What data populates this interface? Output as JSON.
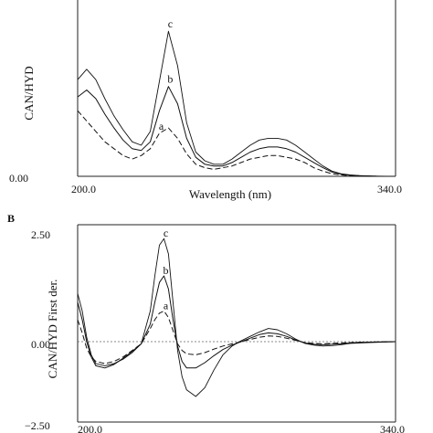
{
  "chart_data": [
    {
      "panel": "A",
      "type": "line",
      "title": "",
      "xlabel": "Wavelength (nm)",
      "ylabel": "CAN/HYD",
      "xlim": [
        200,
        340
      ],
      "ylim": [
        0,
        1.0
      ],
      "x_ticks": [
        "200.0",
        "340.0"
      ],
      "y_ticks": [
        "0.00"
      ],
      "grid": false,
      "legend": "none",
      "series": [
        {
          "name": "a",
          "x": [
            200,
            204,
            208,
            212,
            216,
            220,
            224,
            228,
            232,
            236,
            240,
            244,
            248,
            252,
            256,
            260,
            264,
            268,
            272,
            276,
            280,
            284,
            288,
            292,
            296,
            300,
            304,
            308,
            312,
            316,
            320,
            324,
            328,
            332,
            336,
            340
          ],
          "y": [
            0.38,
            0.32,
            0.26,
            0.2,
            0.16,
            0.12,
            0.1,
            0.12,
            0.16,
            0.25,
            0.28,
            0.22,
            0.13,
            0.07,
            0.05,
            0.04,
            0.05,
            0.06,
            0.08,
            0.1,
            0.11,
            0.12,
            0.12,
            0.11,
            0.1,
            0.08,
            0.05,
            0.03,
            0.015,
            0.008,
            0.004,
            0.002,
            0.001,
            0.0,
            0.0,
            0.0
          ]
        },
        {
          "name": "b",
          "x": [
            200,
            204,
            208,
            212,
            216,
            220,
            224,
            228,
            232,
            236,
            240,
            244,
            248,
            252,
            256,
            260,
            264,
            268,
            272,
            276,
            280,
            284,
            288,
            292,
            296,
            300,
            304,
            308,
            312,
            316,
            320,
            324,
            328,
            332,
            336,
            340
          ],
          "y": [
            0.46,
            0.5,
            0.45,
            0.36,
            0.28,
            0.21,
            0.16,
            0.15,
            0.2,
            0.38,
            0.52,
            0.42,
            0.22,
            0.11,
            0.07,
            0.06,
            0.06,
            0.08,
            0.11,
            0.14,
            0.16,
            0.17,
            0.17,
            0.16,
            0.14,
            0.11,
            0.08,
            0.05,
            0.025,
            0.012,
            0.006,
            0.003,
            0.001,
            0.0,
            0.0,
            0.0
          ]
        },
        {
          "name": "c",
          "x": [
            200,
            204,
            208,
            212,
            216,
            220,
            224,
            228,
            232,
            236,
            240,
            244,
            248,
            252,
            256,
            260,
            264,
            268,
            272,
            276,
            280,
            284,
            288,
            292,
            296,
            300,
            304,
            308,
            312,
            316,
            320,
            324,
            328,
            332,
            336,
            340
          ],
          "y": [
            0.56,
            0.62,
            0.56,
            0.45,
            0.35,
            0.27,
            0.2,
            0.18,
            0.26,
            0.55,
            0.84,
            0.64,
            0.31,
            0.14,
            0.09,
            0.07,
            0.07,
            0.1,
            0.14,
            0.18,
            0.21,
            0.22,
            0.22,
            0.21,
            0.18,
            0.14,
            0.1,
            0.06,
            0.03,
            0.015,
            0.008,
            0.004,
            0.002,
            0.001,
            0.0,
            0.0
          ]
        }
      ]
    },
    {
      "panel": "B",
      "type": "line",
      "title": "",
      "xlabel": "",
      "ylabel": "CAN/HYD First der.",
      "xlim": [
        200,
        340
      ],
      "ylim": [
        -2.5,
        2.5
      ],
      "x_ticks": [
        "200.0",
        "340.0"
      ],
      "y_ticks": [
        "2.50",
        "0.00",
        "−2.50"
      ],
      "grid": false,
      "legend": "none",
      "series": [
        {
          "name": "a",
          "x": [
            200,
            202,
            204,
            206,
            208,
            212,
            216,
            220,
            224,
            228,
            232,
            234,
            236,
            238,
            240,
            242,
            244,
            246,
            248,
            252,
            256,
            260,
            264,
            268,
            272,
            276,
            280,
            284,
            288,
            292,
            296,
            300,
            304,
            308,
            312,
            316,
            320,
            328,
            340
          ],
          "y": [
            0.5,
            0.2,
            -0.15,
            -0.35,
            -0.45,
            -0.5,
            -0.45,
            -0.35,
            -0.2,
            -0.05,
            0.3,
            0.5,
            0.65,
            0.7,
            0.55,
            0.25,
            -0.05,
            -0.2,
            -0.28,
            -0.3,
            -0.25,
            -0.17,
            -0.1,
            -0.05,
            0.0,
            0.05,
            0.1,
            0.13,
            0.12,
            0.08,
            0.03,
            -0.02,
            -0.04,
            -0.05,
            -0.04,
            -0.03,
            -0.02,
            -0.01,
            0.0
          ]
        },
        {
          "name": "b",
          "x": [
            200,
            202,
            204,
            206,
            208,
            212,
            216,
            220,
            224,
            228,
            232,
            234,
            236,
            238,
            240,
            242,
            244,
            246,
            248,
            252,
            256,
            260,
            264,
            268,
            272,
            276,
            280,
            284,
            288,
            292,
            296,
            300,
            304,
            308,
            312,
            316,
            320,
            328,
            340
          ],
          "y": [
            0.9,
            0.5,
            0.0,
            -0.35,
            -0.55,
            -0.6,
            -0.52,
            -0.38,
            -0.22,
            -0.05,
            0.4,
            0.9,
            1.35,
            1.5,
            1.2,
            0.5,
            -0.1,
            -0.45,
            -0.6,
            -0.6,
            -0.48,
            -0.32,
            -0.18,
            -0.08,
            0.0,
            0.08,
            0.16,
            0.2,
            0.18,
            0.12,
            0.04,
            -0.03,
            -0.06,
            -0.07,
            -0.06,
            -0.05,
            -0.03,
            -0.01,
            0.0
          ]
        },
        {
          "name": "c",
          "x": [
            200,
            202,
            204,
            206,
            208,
            212,
            216,
            220,
            224,
            228,
            232,
            234,
            236,
            238,
            240,
            242,
            244,
            246,
            248,
            252,
            256,
            260,
            264,
            268,
            272,
            276,
            280,
            284,
            288,
            292,
            296,
            300,
            304,
            308,
            312,
            316,
            320,
            328,
            340
          ],
          "y": [
            1.1,
            0.7,
            0.1,
            -0.3,
            -0.5,
            -0.55,
            -0.5,
            -0.4,
            -0.25,
            -0.05,
            0.7,
            1.5,
            2.2,
            2.35,
            2.0,
            0.9,
            -0.2,
            -0.8,
            -1.1,
            -1.25,
            -1.05,
            -0.65,
            -0.3,
            -0.1,
            0.02,
            0.12,
            0.22,
            0.3,
            0.27,
            0.18,
            0.06,
            -0.04,
            -0.08,
            -0.1,
            -0.09,
            -0.07,
            -0.04,
            -0.02,
            0.0
          ]
        }
      ]
    }
  ],
  "panels": {
    "b_label": "B"
  }
}
